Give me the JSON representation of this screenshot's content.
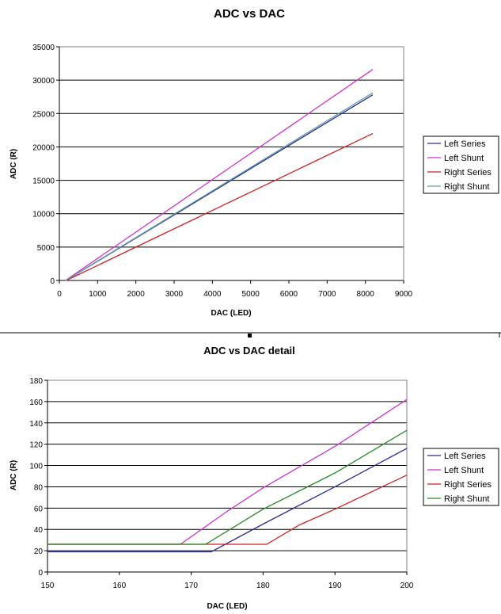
{
  "chart_data": [
    {
      "type": "line",
      "title": "ADC vs DAC",
      "xlabel": "DAC (LED)",
      "ylabel": "ADC (R)",
      "xlim": [
        0,
        9000
      ],
      "ylim": [
        0,
        35000
      ],
      "xticks": [
        0,
        1000,
        2000,
        3000,
        4000,
        5000,
        6000,
        7000,
        8000,
        9000
      ],
      "yticks": [
        0,
        5000,
        10000,
        15000,
        20000,
        25000,
        30000,
        35000
      ],
      "grid": "horizontal",
      "legend_position": "right",
      "series": [
        {
          "name": "Left Series",
          "color": "#2b2b8f",
          "x": [
            170,
            8190
          ],
          "y": [
            0,
            27800
          ]
        },
        {
          "name": "Left Shunt",
          "color": "#cc33cc",
          "x": [
            160,
            8190
          ],
          "y": [
            0,
            31600
          ]
        },
        {
          "name": "Right Series",
          "color": "#cc2222",
          "x": [
            180,
            8190
          ],
          "y": [
            0,
            22000
          ]
        },
        {
          "name": "Right Shunt",
          "color": "#5f9eaa",
          "x": [
            165,
            8190
          ],
          "y": [
            0,
            28100
          ]
        }
      ]
    },
    {
      "type": "line",
      "title": "ADC vs DAC detail",
      "xlabel": "DAC (LED)",
      "ylabel": "ADC (R)",
      "xlim": [
        150,
        200
      ],
      "ylim": [
        0,
        180
      ],
      "xticks": [
        150,
        160,
        170,
        180,
        190,
        200
      ],
      "yticks": [
        0,
        20,
        40,
        60,
        80,
        100,
        120,
        140,
        160,
        180
      ],
      "grid": "horizontal",
      "legend_position": "right",
      "series": [
        {
          "name": "Left Series",
          "color": "#2b2b8f",
          "x": [
            150,
            172.8,
            180,
            190,
            200
          ],
          "y": [
            19,
            19,
            45,
            80,
            116
          ]
        },
        {
          "name": "Left Shunt",
          "color": "#cc33cc",
          "x": [
            150,
            168.5,
            175,
            180,
            190,
            200
          ],
          "y": [
            26,
            26,
            57,
            79,
            118,
            162
          ]
        },
        {
          "name": "Right Series",
          "color": "#cc2222",
          "x": [
            150,
            180.5,
            185,
            190,
            200
          ],
          "y": [
            26,
            26,
            44,
            59,
            91
          ]
        },
        {
          "name": "Right Shunt",
          "color": "#228b22",
          "x": [
            150,
            172,
            180,
            190,
            200
          ],
          "y": [
            26,
            26,
            59,
            93,
            133
          ]
        }
      ]
    }
  ]
}
